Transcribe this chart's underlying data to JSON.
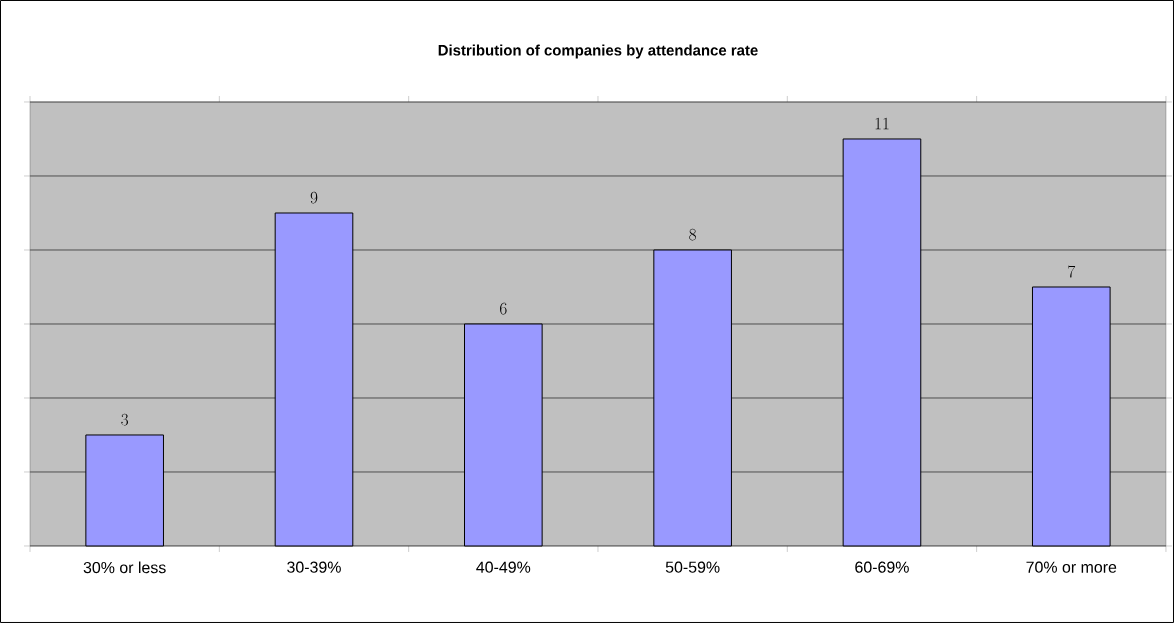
{
  "chart_data": {
    "type": "bar",
    "title": "Distribution of companies by attendance rate",
    "categories": [
      "30% or less",
      "30-39%",
      "40-49%",
      "50-59%",
      "60-69%",
      "70% or more"
    ],
    "values": [
      3,
      9,
      6,
      8,
      11,
      7
    ],
    "color": "#9999ff",
    "ylim": [
      0,
      12
    ],
    "yticks": [
      {
        "value": 0,
        "label": null
      },
      {
        "value": 2,
        "label": null
      },
      {
        "value": 4,
        "label": null
      },
      {
        "value": 6,
        "label": null
      },
      {
        "value": 8,
        "label": null
      },
      {
        "value": 10,
        "label": null
      },
      {
        "value": 12,
        "label": null
      }
    ],
    "grid": "y",
    "tick_labels": "x",
    "data_labels": true
  }
}
